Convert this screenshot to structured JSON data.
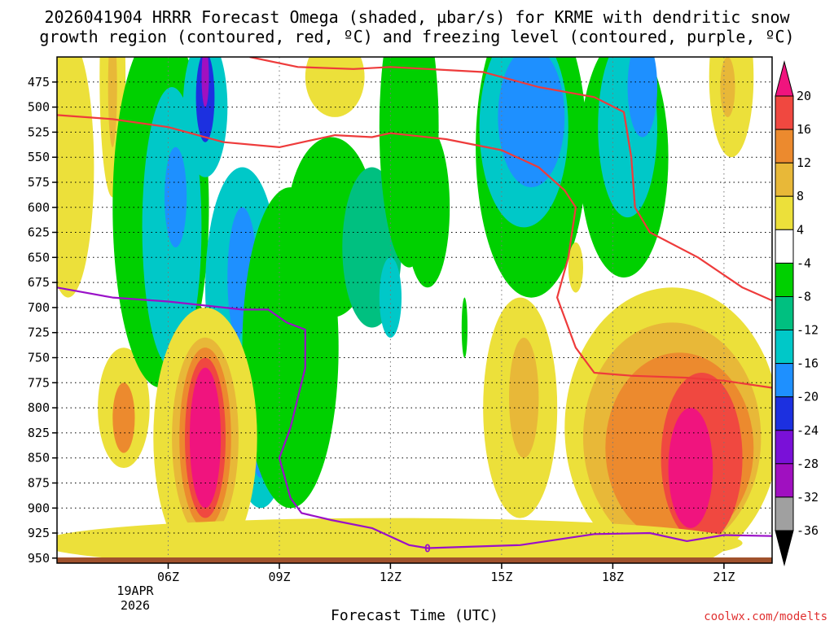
{
  "chart_data": {
    "type": "contour",
    "title": "2026041904 HRRR Forecast Omega (shaded, µbar/s) for KRME with dendritic snow",
    "title_line2": "growth region (contoured, red, ºC) and freezing level (contoured, purple, ºC)",
    "xlabel": "Forecast Time (UTC)",
    "credit": "coolwx.com/modelts",
    "x_date_label": "19APR",
    "x_year_label": "2026",
    "xlim_hours": [
      3,
      22.3
    ],
    "ylim_hpa": [
      450,
      955
    ],
    "y_ticks": [
      {
        "value": 475,
        "label": "475"
      },
      {
        "value": 500,
        "label": "500"
      },
      {
        "value": 525,
        "label": "525"
      },
      {
        "value": 550,
        "label": "550"
      },
      {
        "value": 575,
        "label": "575"
      },
      {
        "value": 600,
        "label": "600"
      },
      {
        "value": 625,
        "label": "625"
      },
      {
        "value": 650,
        "label": "650"
      },
      {
        "value": 675,
        "label": "675"
      },
      {
        "value": 700,
        "label": "700"
      },
      {
        "value": 725,
        "label": "725"
      },
      {
        "value": 750,
        "label": "750"
      },
      {
        "value": 775,
        "label": "775"
      },
      {
        "value": 800,
        "label": "800"
      },
      {
        "value": 825,
        "label": "825"
      },
      {
        "value": 850,
        "label": "850"
      },
      {
        "value": 875,
        "label": "875"
      },
      {
        "value": 900,
        "label": "900"
      },
      {
        "value": 925,
        "label": "925"
      },
      {
        "value": 950,
        "label": "950"
      }
    ],
    "x_ticks": [
      {
        "hour": 6,
        "label": "06Z"
      },
      {
        "hour": 9,
        "label": "09Z"
      },
      {
        "hour": 12,
        "label": "12Z"
      },
      {
        "hour": 15,
        "label": "15Z"
      },
      {
        "hour": 18,
        "label": "18Z"
      },
      {
        "hour": 21,
        "label": "21Z"
      }
    ],
    "colorbar": [
      {
        "label": "20",
        "color": "#f0147e"
      },
      {
        "label": "16",
        "color": "#f04840"
      },
      {
        "label": "12",
        "color": "#ec8a2e"
      },
      {
        "label": "8",
        "color": "#e8b838"
      },
      {
        "label": "4",
        "color": "#ece03a"
      },
      {
        "label": "-4",
        "color": "#ffffff"
      },
      {
        "label": "-8",
        "color": "#00d000"
      },
      {
        "label": "-12",
        "color": "#00c080"
      },
      {
        "label": "-16",
        "color": "#00c8c8"
      },
      {
        "label": "-20",
        "color": "#1e90ff"
      },
      {
        "label": "-24",
        "color": "#1c30e0"
      },
      {
        "label": "-28",
        "color": "#7a10d8"
      },
      {
        "label": "-32",
        "color": "#a010c0"
      },
      {
        "label": "-36",
        "color": "#a0a0a0"
      }
    ],
    "colorbar_top_color": "#f0147e",
    "colorbar_bottom_color": "#000000",
    "omega_fields": [
      {
        "hour": 4.5,
        "hpa": 470,
        "rx_h": 0.35,
        "ry_hpa": 120,
        "value": 6
      },
      {
        "hour": 4.5,
        "hpa": 480,
        "rx_h": 0.12,
        "ry_hpa": 60,
        "value": 9
      },
      {
        "hour": 4.8,
        "hpa": 800,
        "rx_h": 0.7,
        "ry_hpa": 60,
        "value": 6
      },
      {
        "hour": 4.8,
        "hpa": 810,
        "rx_h": 0.3,
        "ry_hpa": 35,
        "value": 12
      },
      {
        "hour": 3.3,
        "hpa": 560,
        "rx_h": 0.7,
        "ry_hpa": 130,
        "value": 5
      },
      {
        "hour": 5.8,
        "hpa": 600,
        "rx_h": 1.3,
        "ry_hpa": 180,
        "value": -8
      },
      {
        "hour": 6.1,
        "hpa": 620,
        "rx_h": 0.8,
        "ry_hpa": 140,
        "value": -12
      },
      {
        "hour": 6.2,
        "hpa": 590,
        "rx_h": 0.3,
        "ry_hpa": 50,
        "value": -16
      },
      {
        "hour": 7.0,
        "hpa": 500,
        "rx_h": 0.6,
        "ry_hpa": 70,
        "value": -14
      },
      {
        "hour": 7.0,
        "hpa": 490,
        "rx_h": 0.25,
        "ry_hpa": 45,
        "value": -20
      },
      {
        "hour": 7.0,
        "hpa": 470,
        "rx_h": 0.1,
        "ry_hpa": 30,
        "value": -28
      },
      {
        "hour": 8.0,
        "hpa": 680,
        "rx_h": 1.0,
        "ry_hpa": 120,
        "value": -12
      },
      {
        "hour": 8.0,
        "hpa": 670,
        "rx_h": 0.4,
        "ry_hpa": 70,
        "value": -16
      },
      {
        "hour": 8.5,
        "hpa": 800,
        "rx_h": 0.8,
        "ry_hpa": 100,
        "value": -12
      },
      {
        "hour": 8.5,
        "hpa": 820,
        "rx_h": 0.3,
        "ry_hpa": 50,
        "value": -16
      },
      {
        "hour": 9.3,
        "hpa": 740,
        "rx_h": 1.3,
        "ry_hpa": 160,
        "value": -8
      },
      {
        "hour": 10.4,
        "hpa": 620,
        "rx_h": 1.2,
        "ry_hpa": 90,
        "value": -8
      },
      {
        "hour": 11.5,
        "hpa": 640,
        "rx_h": 0.8,
        "ry_hpa": 80,
        "value": -10
      },
      {
        "hour": 12.5,
        "hpa": 520,
        "rx_h": 0.8,
        "ry_hpa": 140,
        "value": -8
      },
      {
        "hour": 13.0,
        "hpa": 600,
        "rx_h": 0.6,
        "ry_hpa": 80,
        "value": -8
      },
      {
        "hour": 12.0,
        "hpa": 690,
        "rx_h": 0.3,
        "ry_hpa": 40,
        "value": -12
      },
      {
        "hour": 14.0,
        "hpa": 720,
        "rx_h": 0.08,
        "ry_hpa": 30,
        "value": -8
      },
      {
        "hour": 15.8,
        "hpa": 540,
        "rx_h": 1.5,
        "ry_hpa": 150,
        "value": -8
      },
      {
        "hour": 15.6,
        "hpa": 520,
        "rx_h": 1.2,
        "ry_hpa": 100,
        "value": -12
      },
      {
        "hour": 15.8,
        "hpa": 510,
        "rx_h": 0.9,
        "ry_hpa": 70,
        "value": -16
      },
      {
        "hour": 18.3,
        "hpa": 550,
        "rx_h": 1.2,
        "ry_hpa": 120,
        "value": -8
      },
      {
        "hour": 18.4,
        "hpa": 520,
        "rx_h": 0.8,
        "ry_hpa": 90,
        "value": -12
      },
      {
        "hour": 18.8,
        "hpa": 480,
        "rx_h": 0.4,
        "ry_hpa": 50,
        "value": -16
      },
      {
        "hour": 21.2,
        "hpa": 470,
        "rx_h": 0.6,
        "ry_hpa": 80,
        "value": 5
      },
      {
        "hour": 21.1,
        "hpa": 480,
        "rx_h": 0.2,
        "ry_hpa": 30,
        "value": 9
      },
      {
        "hour": 17.0,
        "hpa": 660,
        "rx_h": 0.2,
        "ry_hpa": 25,
        "value": 5
      },
      {
        "hour": 10.5,
        "hpa": 470,
        "rx_h": 0.8,
        "ry_hpa": 40,
        "value": 5
      },
      {
        "hour": 7.0,
        "hpa": 830,
        "rx_h": 1.4,
        "ry_hpa": 130,
        "value": 6
      },
      {
        "hour": 7.0,
        "hpa": 830,
        "rx_h": 0.9,
        "ry_hpa": 100,
        "value": 10
      },
      {
        "hour": 7.0,
        "hpa": 830,
        "rx_h": 0.7,
        "ry_hpa": 90,
        "value": 14
      },
      {
        "hour": 7.0,
        "hpa": 830,
        "rx_h": 0.55,
        "ry_hpa": 80,
        "value": 18
      },
      {
        "hour": 7.0,
        "hpa": 830,
        "rx_h": 0.42,
        "ry_hpa": 70,
        "value": 22
      },
      {
        "hour": 15.5,
        "hpa": 800,
        "rx_h": 1.0,
        "ry_hpa": 110,
        "value": 6
      },
      {
        "hour": 15.6,
        "hpa": 790,
        "rx_h": 0.4,
        "ry_hpa": 60,
        "value": 10
      },
      {
        "hour": 19.6,
        "hpa": 820,
        "rx_h": 2.9,
        "ry_hpa": 140,
        "value": 6
      },
      {
        "hour": 19.6,
        "hpa": 830,
        "rx_h": 2.4,
        "ry_hpa": 115,
        "value": 10
      },
      {
        "hour": 19.8,
        "hpa": 840,
        "rx_h": 2.0,
        "ry_hpa": 95,
        "value": 14
      },
      {
        "hour": 20.4,
        "hpa": 850,
        "rx_h": 1.1,
        "ry_hpa": 85,
        "value": 18
      },
      {
        "hour": 20.1,
        "hpa": 860,
        "rx_h": 0.6,
        "ry_hpa": 60,
        "value": 22
      },
      {
        "hour": 12.0,
        "hpa": 935,
        "rx_h": 9.5,
        "ry_hpa": 25,
        "value": 5
      }
    ],
    "dendritic_upper_line": [
      {
        "hour": 3.0,
        "hpa": 508
      },
      {
        "hour": 4.5,
        "hpa": 512
      },
      {
        "hour": 6.0,
        "hpa": 520
      },
      {
        "hour": 7.5,
        "hpa": 535
      },
      {
        "hour": 9.0,
        "hpa": 540
      },
      {
        "hour": 10.5,
        "hpa": 528
      },
      {
        "hour": 11.5,
        "hpa": 530
      },
      {
        "hour": 12.0,
        "hpa": 526
      },
      {
        "hour": 13.5,
        "hpa": 532
      },
      {
        "hour": 15.0,
        "hpa": 543
      },
      {
        "hour": 16.0,
        "hpa": 560
      },
      {
        "hour": 16.7,
        "hpa": 583
      },
      {
        "hour": 17.0,
        "hpa": 600
      },
      {
        "hour": 16.8,
        "hpa": 650
      },
      {
        "hour": 16.5,
        "hpa": 690
      },
      {
        "hour": 17.0,
        "hpa": 740
      },
      {
        "hour": 17.5,
        "hpa": 765
      },
      {
        "hour": 18.5,
        "hpa": 768
      },
      {
        "hour": 20.0,
        "hpa": 770
      },
      {
        "hour": 21.0,
        "hpa": 773
      },
      {
        "hour": 22.3,
        "hpa": 780
      }
    ],
    "dendritic_lower_line": [
      {
        "hour": 8.2,
        "hpa": 450
      },
      {
        "hour": 9.5,
        "hpa": 460
      },
      {
        "hour": 11.0,
        "hpa": 462
      },
      {
        "hour": 12.0,
        "hpa": 460
      },
      {
        "hour": 14.5,
        "hpa": 465
      },
      {
        "hour": 16.0,
        "hpa": 480
      },
      {
        "hour": 17.5,
        "hpa": 490
      },
      {
        "hour": 18.3,
        "hpa": 505
      },
      {
        "hour": 18.5,
        "hpa": 550
      },
      {
        "hour": 18.6,
        "hpa": 600
      },
      {
        "hour": 19.0,
        "hpa": 625
      },
      {
        "hour": 20.3,
        "hpa": 650
      },
      {
        "hour": 21.5,
        "hpa": 680
      },
      {
        "hour": 22.3,
        "hpa": 693
      }
    ],
    "freezing_level_line": [
      {
        "hour": 3.0,
        "hpa": 680
      },
      {
        "hour": 4.5,
        "hpa": 690
      },
      {
        "hour": 6.0,
        "hpa": 694
      },
      {
        "hour": 8.0,
        "hpa": 702
      },
      {
        "hour": 8.7,
        "hpa": 702
      },
      {
        "hour": 9.2,
        "hpa": 715
      },
      {
        "hour": 9.7,
        "hpa": 722
      },
      {
        "hour": 9.7,
        "hpa": 760
      },
      {
        "hour": 9.3,
        "hpa": 820
      },
      {
        "hour": 9.0,
        "hpa": 850
      },
      {
        "hour": 9.3,
        "hpa": 890
      },
      {
        "hour": 9.6,
        "hpa": 905
      },
      {
        "hour": 10.4,
        "hpa": 912
      },
      {
        "hour": 11.5,
        "hpa": 920
      },
      {
        "hour": 12.5,
        "hpa": 937
      },
      {
        "hour": 13.0,
        "hpa": 940
      },
      {
        "hour": 15.5,
        "hpa": 937
      },
      {
        "hour": 17.5,
        "hpa": 926
      },
      {
        "hour": 19.0,
        "hpa": 925
      },
      {
        "hour": 20.0,
        "hpa": 933
      },
      {
        "hour": 21.0,
        "hpa": 927
      },
      {
        "hour": 22.3,
        "hpa": 928
      }
    ],
    "freezing_label": {
      "text": "0",
      "hour": 13.0,
      "hpa": 940
    },
    "ground_color": "#a0522d"
  }
}
